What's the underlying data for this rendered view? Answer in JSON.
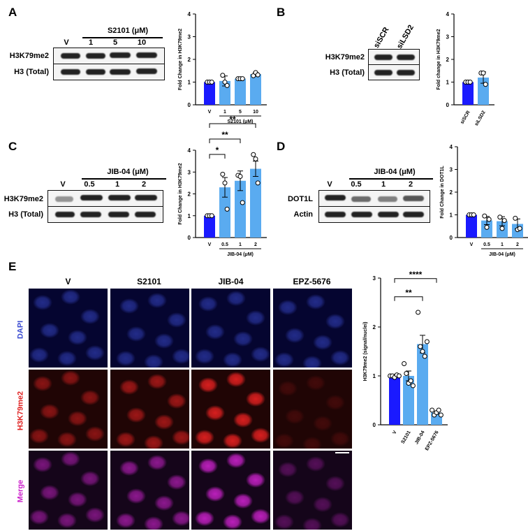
{
  "panels": {
    "A": {
      "label": "A",
      "treatment": "S2101 (μM)",
      "lanes": [
        "V",
        "1",
        "5",
        "10"
      ],
      "rows": [
        "H3K79me2",
        "H3 (Total)"
      ],
      "chart_data": {
        "type": "bar",
        "ylabel": "Fold Change in H3K79me2",
        "categories": [
          "V",
          "1",
          "5",
          "10"
        ],
        "xgroup_label": "S2101 (μM)",
        "values": [
          1.0,
          1.05,
          1.15,
          1.35
        ],
        "errors": [
          0.0,
          0.22,
          0.02,
          0.08
        ],
        "points": [
          [
            1,
            1,
            1
          ],
          [
            1.3,
            1.0,
            0.85
          ],
          [
            1.15,
            1.15,
            1.15
          ],
          [
            1.28,
            1.42,
            1.32
          ]
        ],
        "ylim": [
          0,
          4
        ],
        "yticks": [
          0,
          1,
          2,
          3,
          4
        ],
        "colors": [
          "#1a1aff",
          "#5aabf0",
          "#5aabf0",
          "#5aabf0"
        ]
      }
    },
    "B": {
      "label": "B",
      "lanes": [
        "siSCR",
        "siLSD2"
      ],
      "rows": [
        "H3K79me2",
        "H3 (Total)"
      ],
      "chart_data": {
        "type": "bar",
        "ylabel": "Fold change in H3K79me2",
        "categories": [
          "siSCR",
          "siLSD2"
        ],
        "values": [
          1.0,
          1.2
        ],
        "errors": [
          0.0,
          0.25
        ],
        "points": [
          [
            1,
            1,
            1
          ],
          [
            1.4,
            1.4,
            0.9
          ]
        ],
        "ylim": [
          0,
          4
        ],
        "yticks": [
          0,
          1,
          2,
          3,
          4
        ],
        "colors": [
          "#1a1aff",
          "#5aabf0"
        ]
      }
    },
    "C": {
      "label": "C",
      "treatment": "JIB-04 (μM)",
      "lanes": [
        "V",
        "0.5",
        "1",
        "2"
      ],
      "rows": [
        "H3K79me2",
        "H3 (Total)"
      ],
      "chart_data": {
        "type": "bar",
        "ylabel": "Fold Change in H3K79me2",
        "categories": [
          "V",
          "0.5",
          "1",
          "2"
        ],
        "xgroup_label": "JIB-04 (μM)",
        "values": [
          1.0,
          2.3,
          2.6,
          3.15
        ],
        "errors": [
          0.0,
          0.45,
          0.45,
          0.35
        ],
        "points": [
          [
            1,
            1,
            1
          ],
          [
            2.9,
            2.5,
            1.3
          ],
          [
            2.85,
            2.8,
            1.6
          ],
          [
            3.8,
            3.6,
            2.5
          ]
        ],
        "ylim": [
          0,
          4
        ],
        "yticks": [
          0,
          1,
          2,
          3,
          4
        ],
        "colors": [
          "#1a1aff",
          "#5aabf0",
          "#5aabf0",
          "#5aabf0"
        ],
        "significance": [
          "*",
          "**",
          "**"
        ]
      }
    },
    "D": {
      "label": "D",
      "treatment": "JIB-04 (μM)",
      "lanes": [
        "V",
        "0.5",
        "1",
        "2"
      ],
      "rows": [
        "DOT1L",
        "Actin"
      ],
      "chart_data": {
        "type": "bar",
        "ylabel": "Fold Change in DOT1L",
        "categories": [
          "V",
          "0.5",
          "1",
          "2"
        ],
        "xgroup_label": "JIB-04 (μM)",
        "values": [
          1.0,
          0.75,
          0.72,
          0.6
        ],
        "errors": [
          0.0,
          0.18,
          0.2,
          0.22
        ],
        "points": [
          [
            1,
            1,
            1
          ],
          [
            0.95,
            0.45,
            0.8
          ],
          [
            0.9,
            0.4,
            0.75
          ],
          [
            0.85,
            0.35,
            0.4
          ]
        ],
        "ylim": [
          0,
          4
        ],
        "yticks": [
          0,
          1,
          2,
          3,
          4
        ],
        "colors": [
          "#1a1aff",
          "#5aabf0",
          "#5aabf0",
          "#5aabf0"
        ]
      }
    },
    "E": {
      "label": "E",
      "columns": [
        "V",
        "S2101",
        "JIB-04",
        "EPZ-5676"
      ],
      "rows": [
        {
          "label": "DAPI",
          "color": "#3a4bd1"
        },
        {
          "label": "H3K79me2",
          "color": "#e02020"
        },
        {
          "label": "Merge",
          "color": "#cc22cc"
        }
      ],
      "chart_data": {
        "type": "bar",
        "ylabel": "H3K79me2 (signal/nuclei)",
        "categories": [
          "V",
          "S2101",
          "JIB-04",
          "EPZ-5676"
        ],
        "values": [
          1.0,
          1.0,
          1.65,
          0.25
        ],
        "errors": [
          0.03,
          0.1,
          0.18,
          0.03
        ],
        "points": [
          [
            1,
            1,
            0.97,
            1.02,
            1
          ],
          [
            1.25,
            1.05,
            0.85,
            0.9,
            0.8
          ],
          [
            2.3,
            1.6,
            1.5,
            1.4,
            1.7
          ],
          [
            0.3,
            0.2,
            0.25,
            0.3,
            0.2
          ]
        ],
        "ylim": [
          0,
          3
        ],
        "yticks": [
          0,
          1,
          2,
          3
        ],
        "colors": [
          "#1a1aff",
          "#5aabf0",
          "#5aabf0",
          "#5aabf0"
        ],
        "significance": [
          "**",
          "****"
        ]
      }
    }
  }
}
